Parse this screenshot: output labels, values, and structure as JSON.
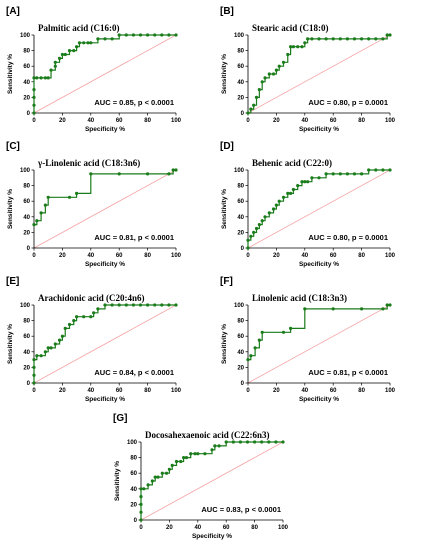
{
  "chart_data": [
    {
      "type": "line",
      "panel": "[A]",
      "title": "Palmitic acid (C16:0)",
      "xlabel": "Specificity %",
      "ylabel": "Sensitivity %",
      "xlim": [
        0,
        100
      ],
      "ylim": [
        0,
        100
      ],
      "xticks": [
        "0",
        "20",
        "40",
        "60",
        "80",
        "100"
      ],
      "yticks": [
        "0",
        "20",
        "40",
        "60",
        "80",
        "100"
      ],
      "annotation": "AUC = 0.85, p < 0.0001",
      "x": [
        0,
        0,
        0,
        0,
        0,
        2,
        5,
        8,
        10,
        12,
        15,
        15,
        18,
        20,
        22,
        25,
        28,
        30,
        32,
        35,
        38,
        40,
        45,
        50,
        55,
        60,
        65,
        70,
        75,
        80,
        85,
        90,
        95,
        100
      ],
      "y": [
        0,
        10,
        20,
        30,
        45,
        45,
        45,
        45,
        45,
        55,
        60,
        65,
        70,
        75,
        75,
        80,
        80,
        85,
        90,
        90,
        90,
        90,
        95,
        95,
        95,
        100,
        100,
        100,
        100,
        100,
        100,
        100,
        100,
        100
      ]
    },
    {
      "type": "line",
      "panel": "[B]",
      "title": "Stearic acid (C18:0)",
      "xlabel": "Specificity %",
      "ylabel": "Sensitivity %",
      "xlim": [
        0,
        100
      ],
      "ylim": [
        0,
        100
      ],
      "xticks": [
        "0",
        "20",
        "40",
        "60",
        "80",
        "100"
      ],
      "yticks": [
        "0",
        "20",
        "40",
        "60",
        "80",
        "100"
      ],
      "annotation": "AUC = 0.80, p = 0.0001",
      "x": [
        0,
        2,
        4,
        6,
        8,
        10,
        12,
        15,
        18,
        20,
        22,
        25,
        28,
        30,
        32,
        35,
        38,
        40,
        42,
        45,
        50,
        55,
        60,
        65,
        70,
        75,
        80,
        85,
        90,
        95,
        98,
        100
      ],
      "y": [
        0,
        5,
        10,
        20,
        30,
        40,
        45,
        50,
        50,
        55,
        60,
        65,
        75,
        85,
        85,
        85,
        85,
        90,
        95,
        95,
        95,
        95,
        95,
        95,
        95,
        95,
        95,
        95,
        95,
        95,
        100,
        100
      ]
    },
    {
      "type": "line",
      "panel": "[C]",
      "title": "γ-Linolenic acid (C18:3n6)",
      "xlabel": "Specificity %",
      "ylabel": "Sensitivity %",
      "xlim": [
        0,
        100
      ],
      "ylim": [
        0,
        100
      ],
      "xticks": [
        "0",
        "20",
        "40",
        "60",
        "80",
        "100"
      ],
      "yticks": [
        "0",
        "20",
        "40",
        "60",
        "80",
        "100"
      ],
      "annotation": "AUC = 0.81, p < 0.0001",
      "x": [
        0,
        2,
        5,
        8,
        10,
        25,
        30,
        40,
        60,
        80,
        95,
        98,
        100
      ],
      "y": [
        30,
        35,
        45,
        55,
        65,
        65,
        70,
        95,
        95,
        95,
        95,
        100,
        100
      ]
    },
    {
      "type": "line",
      "panel": "[D]",
      "title": "Behenic acid (C22:0)",
      "xlabel": "Specificity %",
      "ylabel": "Sensitivity %",
      "xlim": [
        0,
        100
      ],
      "ylim": [
        0,
        100
      ],
      "xticks": [
        "0",
        "20",
        "40",
        "60",
        "80",
        "100"
      ],
      "yticks": [
        "0",
        "20",
        "40",
        "60",
        "80",
        "100"
      ],
      "annotation": "AUC = 0.80, p = 0.0001",
      "x": [
        0,
        0,
        2,
        4,
        6,
        8,
        10,
        12,
        15,
        18,
        20,
        22,
        25,
        28,
        30,
        32,
        35,
        38,
        40,
        42,
        45,
        50,
        55,
        60,
        65,
        70,
        75,
        80,
        85,
        90,
        95,
        100
      ],
      "y": [
        0,
        10,
        15,
        20,
        25,
        30,
        35,
        40,
        45,
        50,
        55,
        60,
        65,
        70,
        70,
        75,
        80,
        85,
        85,
        85,
        90,
        90,
        95,
        95,
        95,
        95,
        95,
        95,
        100,
        100,
        100,
        100
      ]
    },
    {
      "type": "line",
      "panel": "[E]",
      "title": "Arachidonic acid (C20:4n6)",
      "xlabel": "Specificity %",
      "ylabel": "Sensitivity %",
      "xlim": [
        0,
        100
      ],
      "ylim": [
        0,
        100
      ],
      "xticks": [
        "0",
        "20",
        "40",
        "60",
        "80",
        "100"
      ],
      "yticks": [
        "0",
        "20",
        "40",
        "60",
        "80",
        "100"
      ],
      "annotation": "AUC = 0.84, p < 0.0001",
      "x": [
        0,
        0,
        0,
        0,
        2,
        5,
        8,
        10,
        12,
        15,
        18,
        20,
        22,
        25,
        28,
        30,
        35,
        40,
        42,
        45,
        50,
        55,
        60,
        65,
        70,
        75,
        80,
        85,
        90,
        95,
        100
      ],
      "y": [
        0,
        10,
        20,
        30,
        35,
        35,
        40,
        45,
        45,
        50,
        55,
        60,
        70,
        75,
        80,
        85,
        85,
        85,
        90,
        95,
        100,
        100,
        100,
        100,
        100,
        100,
        100,
        100,
        100,
        100,
        100
      ]
    },
    {
      "type": "line",
      "panel": "[F]",
      "title": "Linolenic acid (C18:3n3)",
      "xlabel": "Specificity %",
      "ylabel": "Sensitivity %",
      "xlim": [
        0,
        100
      ],
      "ylim": [
        0,
        100
      ],
      "xticks": [
        "0",
        "20",
        "40",
        "60",
        "80",
        "100"
      ],
      "yticks": [
        "0",
        "20",
        "40",
        "60",
        "80",
        "100"
      ],
      "annotation": "AUC = 0.81, p < 0.0001",
      "x": [
        0,
        2,
        5,
        8,
        10,
        25,
        30,
        40,
        60,
        80,
        95,
        98,
        100
      ],
      "y": [
        30,
        35,
        45,
        55,
        65,
        65,
        70,
        95,
        95,
        95,
        95,
        100,
        100
      ]
    },
    {
      "type": "line",
      "panel": "[G]",
      "title": "Docosahexaenoic acid (C22:6n3)",
      "xlabel": "Specificity %",
      "ylabel": "Sensitivity %",
      "xlim": [
        0,
        100
      ],
      "ylim": [
        0,
        100
      ],
      "xticks": [
        "0",
        "20",
        "40",
        "60",
        "80",
        "100"
      ],
      "yticks": [
        "0",
        "20",
        "40",
        "60",
        "80",
        "100"
      ],
      "annotation": "AUC = 0.83, p < 0.0001",
      "x": [
        0,
        0,
        0,
        0,
        0,
        2,
        5,
        8,
        10,
        12,
        15,
        18,
        20,
        22,
        25,
        28,
        30,
        32,
        35,
        38,
        40,
        45,
        50,
        52,
        55,
        60,
        65,
        70,
        75,
        80,
        85,
        90,
        95,
        100
      ],
      "y": [
        0,
        10,
        20,
        30,
        40,
        40,
        45,
        50,
        55,
        55,
        60,
        60,
        65,
        70,
        75,
        75,
        80,
        80,
        85,
        85,
        85,
        85,
        90,
        95,
        95,
        100,
        100,
        100,
        100,
        100,
        100,
        100,
        100,
        100
      ]
    }
  ]
}
